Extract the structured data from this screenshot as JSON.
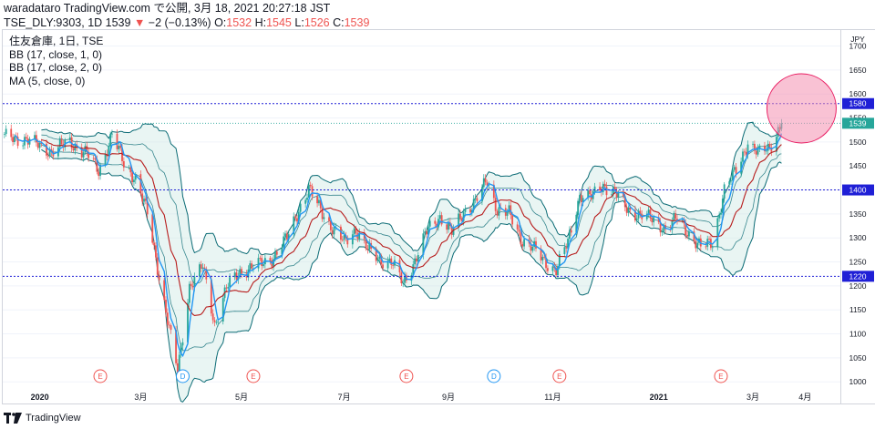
{
  "header": {
    "line1": "waradataro TradingView.com で公開, 3月 18, 2021 20:27:18 JST",
    "symbol": "TSE_DLY:9303, 1D 1539",
    "change_arrow": "▼",
    "change": "−2 (−0.13%)",
    "o_label": "O:",
    "o_value": "1532",
    "h_label": "H:",
    "h_value": "1545",
    "l_label": "L:",
    "l_value": "1526",
    "c_label": "C:",
    "c_value": "1539"
  },
  "legend": [
    "住友倉庫, 1日, TSE",
    "BB (17, close, 1, 0)",
    "BB (17, close, 2, 0)",
    "MA (5, close, 0)"
  ],
  "footer": {
    "brand": "TradingView"
  },
  "colors": {
    "bull": "#26a69a",
    "bear": "#ef5350",
    "ma": "#2196f3",
    "basis": "#b71c1c",
    "band": "#0b6b75",
    "band_fill": "#cfe8e4",
    "level": "#1f1fd6",
    "circle": "#f48fb1"
  },
  "chart_data": {
    "type": "candlestick",
    "currency": "JPY",
    "ylim": [
      1000,
      1720
    ],
    "yticks": [
      1000,
      1050,
      1100,
      1150,
      1200,
      1250,
      1300,
      1350,
      1400,
      1450,
      1500,
      1550,
      1600,
      1650,
      1700
    ],
    "xticks": [
      "2020",
      "3月",
      "5月",
      "7月",
      "9月",
      "11月",
      "2021",
      "3月",
      "4月"
    ],
    "horizontal_levels": [
      1580,
      1400,
      1220
    ],
    "last_price": 1539,
    "events": [
      {
        "date": "2020-02-07",
        "label": "E"
      },
      {
        "date": "2020-03-27",
        "label": "D"
      },
      {
        "date": "2020-05-08",
        "label": "E"
      },
      {
        "date": "2020-08-07",
        "label": "E"
      },
      {
        "date": "2020-09-28",
        "label": "D"
      },
      {
        "date": "2020-11-06",
        "label": "E"
      },
      {
        "date": "2021-02-10",
        "label": "E"
      }
    ],
    "highlight": {
      "date": "2021-03-18",
      "price": 1570
    },
    "close_series": [
      {
        "date": "2019-12-12",
        "close": 1510
      },
      {
        "date": "2019-12-25",
        "close": 1505
      },
      {
        "date": "2020-01-09",
        "close": 1480
      },
      {
        "date": "2020-01-20",
        "close": 1500
      },
      {
        "date": "2020-01-30",
        "close": 1475
      },
      {
        "date": "2020-02-06",
        "close": 1440
      },
      {
        "date": "2020-02-14",
        "close": 1515
      },
      {
        "date": "2020-02-21",
        "close": 1455
      },
      {
        "date": "2020-02-28",
        "close": 1425
      },
      {
        "date": "2020-03-06",
        "close": 1350
      },
      {
        "date": "2020-03-12",
        "close": 1240
      },
      {
        "date": "2020-03-19",
        "close": 1110
      },
      {
        "date": "2020-03-24",
        "close": 1020
      },
      {
        "date": "2020-03-31",
        "close": 1200
      },
      {
        "date": "2020-04-08",
        "close": 1240
      },
      {
        "date": "2020-04-15",
        "close": 1120
      },
      {
        "date": "2020-04-22",
        "close": 1195
      },
      {
        "date": "2020-04-30",
        "close": 1230
      },
      {
        "date": "2020-05-12",
        "close": 1245
      },
      {
        "date": "2020-05-20",
        "close": 1260
      },
      {
        "date": "2020-05-28",
        "close": 1300
      },
      {
        "date": "2020-06-04",
        "close": 1360
      },
      {
        "date": "2020-06-10",
        "close": 1400
      },
      {
        "date": "2020-06-17",
        "close": 1360
      },
      {
        "date": "2020-06-24",
        "close": 1320
      },
      {
        "date": "2020-07-01",
        "close": 1290
      },
      {
        "date": "2020-07-08",
        "close": 1320
      },
      {
        "date": "2020-07-15",
        "close": 1275
      },
      {
        "date": "2020-07-22",
        "close": 1255
      },
      {
        "date": "2020-07-29",
        "close": 1250
      },
      {
        "date": "2020-08-05",
        "close": 1205
      },
      {
        "date": "2020-08-13",
        "close": 1260
      },
      {
        "date": "2020-08-20",
        "close": 1320
      },
      {
        "date": "2020-08-27",
        "close": 1345
      },
      {
        "date": "2020-09-03",
        "close": 1310
      },
      {
        "date": "2020-09-10",
        "close": 1355
      },
      {
        "date": "2020-09-17",
        "close": 1375
      },
      {
        "date": "2020-09-24",
        "close": 1420
      },
      {
        "date": "2020-09-30",
        "close": 1360
      },
      {
        "date": "2020-10-07",
        "close": 1350
      },
      {
        "date": "2020-10-14",
        "close": 1300
      },
      {
        "date": "2020-10-21",
        "close": 1280
      },
      {
        "date": "2020-10-28",
        "close": 1250
      },
      {
        "date": "2020-11-04",
        "close": 1235
      },
      {
        "date": "2020-11-11",
        "close": 1290
      },
      {
        "date": "2020-11-18",
        "close": 1390
      },
      {
        "date": "2020-11-25",
        "close": 1385
      },
      {
        "date": "2020-12-02",
        "close": 1410
      },
      {
        "date": "2020-12-09",
        "close": 1395
      },
      {
        "date": "2020-12-16",
        "close": 1360
      },
      {
        "date": "2020-12-23",
        "close": 1350
      },
      {
        "date": "2020-12-30",
        "close": 1340
      },
      {
        "date": "2021-01-08",
        "close": 1320
      },
      {
        "date": "2021-01-15",
        "close": 1340
      },
      {
        "date": "2021-01-22",
        "close": 1310
      },
      {
        "date": "2021-01-29",
        "close": 1280
      },
      {
        "date": "2021-02-05",
        "close": 1290
      },
      {
        "date": "2021-02-12",
        "close": 1400
      },
      {
        "date": "2021-02-19",
        "close": 1440
      },
      {
        "date": "2021-02-26",
        "close": 1500
      },
      {
        "date": "2021-03-04",
        "close": 1475
      },
      {
        "date": "2021-03-11",
        "close": 1490
      },
      {
        "date": "2021-03-18",
        "close": 1539
      }
    ]
  }
}
